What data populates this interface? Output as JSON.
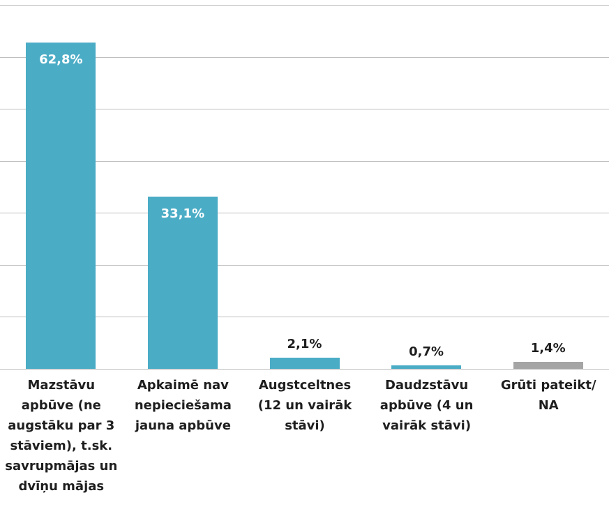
{
  "chart_data": {
    "type": "bar",
    "categories": [
      "Mazstāvu apbūve (ne augstāku par 3 stāviem), t.sk. savrupmājas un dvīņu mājas",
      "Apkaimē nav nepieciešama jauna apbūve",
      "Augstceltnes (12 un vairāk stāvi)",
      "Daudzstāvu apbūve (4 un vairāk stāvi)",
      "Grūti pateikt/ NA"
    ],
    "values": [
      62.8,
      33.1,
      2.1,
      0.7,
      1.4
    ],
    "value_labels": [
      "62,8%",
      "33,1%",
      "2,1%",
      "0,7%",
      "1,4%"
    ],
    "colors": [
      "#4bacc6",
      "#4bacc6",
      "#4bacc6",
      "#4bacc6",
      "#a5a5a5"
    ],
    "ylim": [
      0,
      70
    ],
    "yticks": [
      0,
      10,
      20,
      30,
      40,
      50,
      60,
      70
    ],
    "grid": true
  }
}
